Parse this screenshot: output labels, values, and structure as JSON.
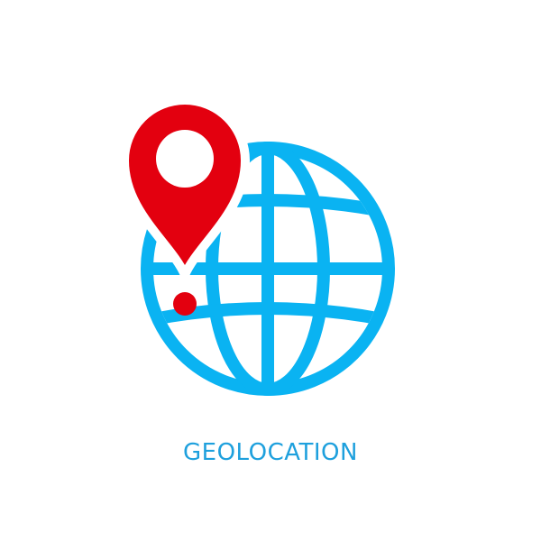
{
  "label": "GEOLOCATION",
  "icons": {
    "globe": "globe-icon",
    "pin": "map-pin-icon",
    "dot": "location-dot-icon"
  },
  "colors": {
    "globe": "#0ab3f2",
    "pin": "#e3000f",
    "label": "#1ea0dd",
    "background": "#ffffff"
  }
}
